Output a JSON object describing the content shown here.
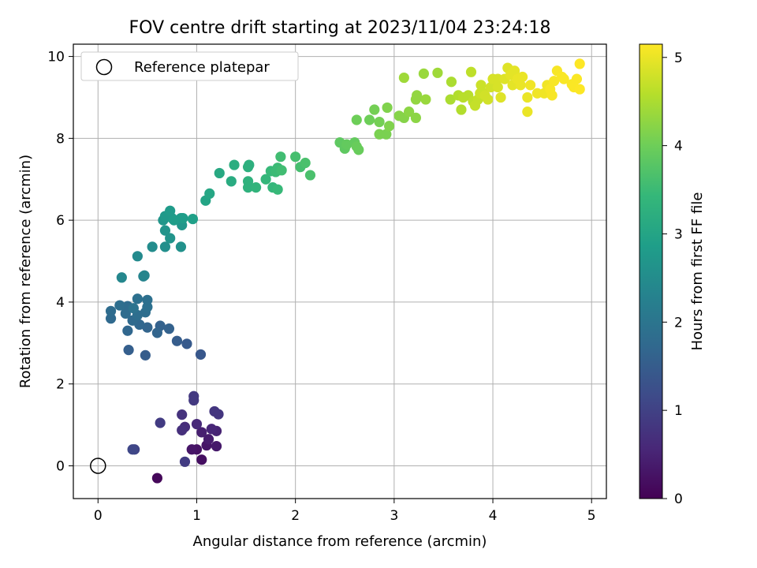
{
  "chart_data": {
    "type": "scatter",
    "title": "FOV centre drift starting at 2023/11/04 23:24:18",
    "xlabel": "Angular distance from reference (arcmin)",
    "ylabel": "Rotation from reference (arcmin)",
    "xlim": [
      -0.25,
      5.15
    ],
    "ylim": [
      -0.8,
      10.3
    ],
    "xticks": [
      0,
      1,
      2,
      3,
      4,
      5
    ],
    "yticks": [
      0,
      2,
      4,
      6,
      8,
      10
    ],
    "grid": true,
    "legend": {
      "placement": "top-left",
      "entries": [
        "Reference platepar"
      ]
    },
    "reference_point": {
      "x": 0,
      "y": 0
    },
    "colorbar": {
      "label": "Hours from first FF file",
      "range": [
        0,
        5.15
      ],
      "ticks": [
        0,
        1,
        2,
        3,
        4,
        5
      ],
      "colormap": "viridis"
    },
    "colormap_stops": [
      "#440154",
      "#482878",
      "#3e4a89",
      "#31688e",
      "#26828e",
      "#1f9e89",
      "#35b779",
      "#6ece58",
      "#b5de2b",
      "#fde725"
    ],
    "points": [
      [
        0.6,
        -0.3,
        0.1
      ],
      [
        1.05,
        0.15,
        0.2
      ],
      [
        1.0,
        0.4,
        0.25
      ],
      [
        1.1,
        0.5,
        0.3
      ],
      [
        0.95,
        0.4,
        0.3
      ],
      [
        1.2,
        0.48,
        0.35
      ],
      [
        1.12,
        0.65,
        0.4
      ],
      [
        1.05,
        0.82,
        0.45
      ],
      [
        1.2,
        0.85,
        0.5
      ],
      [
        1.15,
        0.9,
        0.55
      ],
      [
        1.0,
        1.02,
        0.6
      ],
      [
        0.88,
        0.95,
        0.65
      ],
      [
        0.85,
        0.87,
        0.7
      ],
      [
        0.85,
        1.25,
        0.75
      ],
      [
        1.18,
        1.33,
        0.8
      ],
      [
        1.22,
        1.26,
        0.8
      ],
      [
        0.97,
        1.7,
        0.85
      ],
      [
        0.97,
        1.6,
        0.85
      ],
      [
        0.63,
        1.05,
        0.9
      ],
      [
        0.88,
        0.1,
        0.9
      ],
      [
        0.37,
        0.4,
        1.05
      ],
      [
        0.35,
        0.4,
        1.1
      ],
      [
        1.04,
        2.72,
        1.4
      ],
      [
        0.9,
        2.98,
        1.45
      ],
      [
        0.8,
        3.05,
        1.5
      ],
      [
        0.48,
        2.7,
        1.5
      ],
      [
        0.31,
        2.83,
        1.55
      ],
      [
        0.72,
        3.35,
        1.6
      ],
      [
        0.63,
        3.42,
        1.6
      ],
      [
        0.6,
        3.25,
        1.65
      ],
      [
        0.5,
        3.38,
        1.65
      ],
      [
        0.42,
        3.45,
        1.7
      ],
      [
        0.3,
        3.3,
        1.7
      ],
      [
        0.35,
        3.55,
        1.75
      ],
      [
        0.13,
        3.6,
        1.75
      ],
      [
        0.13,
        3.78,
        1.8
      ],
      [
        0.28,
        3.72,
        1.8
      ],
      [
        0.3,
        3.9,
        1.8
      ],
      [
        0.4,
        3.68,
        1.85
      ],
      [
        0.48,
        3.75,
        1.85
      ],
      [
        0.22,
        3.92,
        1.85
      ],
      [
        0.5,
        3.88,
        1.9
      ],
      [
        0.5,
        4.05,
        1.9
      ],
      [
        0.4,
        4.08,
        1.9
      ],
      [
        0.36,
        3.85,
        1.95
      ],
      [
        0.46,
        4.63,
        2.3
      ],
      [
        0.47,
        4.65,
        2.35
      ],
      [
        0.24,
        4.6,
        2.4
      ],
      [
        0.4,
        5.12,
        2.45
      ],
      [
        0.55,
        5.35,
        2.5
      ],
      [
        0.68,
        5.35,
        2.55
      ],
      [
        0.84,
        5.35,
        2.6
      ],
      [
        0.73,
        5.56,
        2.65
      ],
      [
        0.68,
        5.75,
        2.65
      ],
      [
        0.85,
        5.88,
        2.7
      ],
      [
        0.66,
        6.0,
        2.7
      ],
      [
        0.68,
        6.1,
        2.75
      ],
      [
        0.75,
        6.05,
        2.75
      ],
      [
        0.73,
        6.23,
        2.8
      ],
      [
        0.84,
        6.05,
        2.8
      ],
      [
        0.86,
        6.05,
        2.85
      ],
      [
        0.77,
        6.0,
        2.85
      ],
      [
        0.96,
        6.03,
        2.9
      ],
      [
        1.09,
        6.48,
        3.0
      ],
      [
        1.13,
        6.65,
        3.05
      ],
      [
        1.23,
        7.15,
        3.1
      ],
      [
        1.35,
        6.95,
        3.15
      ],
      [
        1.38,
        7.35,
        3.2
      ],
      [
        1.52,
        7.3,
        3.25
      ],
      [
        1.53,
        7.35,
        3.25
      ],
      [
        1.52,
        6.95,
        3.3
      ],
      [
        1.52,
        6.8,
        3.3
      ],
      [
        1.6,
        6.8,
        3.35
      ],
      [
        1.7,
        7.0,
        3.4
      ],
      [
        1.77,
        6.8,
        3.4
      ],
      [
        1.82,
        6.75,
        3.45
      ],
      [
        1.75,
        7.2,
        3.45
      ],
      [
        1.8,
        7.18,
        3.5
      ],
      [
        1.82,
        7.28,
        3.5
      ],
      [
        1.86,
        7.22,
        3.55
      ],
      [
        1.85,
        7.55,
        3.55
      ],
      [
        2.0,
        7.55,
        3.6
      ],
      [
        2.05,
        7.3,
        3.6
      ],
      [
        2.1,
        7.4,
        3.65
      ],
      [
        2.15,
        7.1,
        3.65
      ],
      [
        2.45,
        7.9,
        3.85
      ],
      [
        2.5,
        7.75,
        3.85
      ],
      [
        2.52,
        7.85,
        3.9
      ],
      [
        2.6,
        7.9,
        3.9
      ],
      [
        2.62,
        7.8,
        3.95
      ],
      [
        2.64,
        7.72,
        3.95
      ],
      [
        2.62,
        8.45,
        4.0
      ],
      [
        2.75,
        8.45,
        4.0
      ],
      [
        2.8,
        8.7,
        4.05
      ],
      [
        2.85,
        8.4,
        4.05
      ],
      [
        2.85,
        8.1,
        4.1
      ],
      [
        2.92,
        8.1,
        4.1
      ],
      [
        2.95,
        8.3,
        4.15
      ],
      [
        2.93,
        8.75,
        4.15
      ],
      [
        3.05,
        8.55,
        4.2
      ],
      [
        3.1,
        8.5,
        4.2
      ],
      [
        3.15,
        8.65,
        4.25
      ],
      [
        3.22,
        8.5,
        4.25
      ],
      [
        3.22,
        8.95,
        4.3
      ],
      [
        3.23,
        9.05,
        4.3
      ],
      [
        3.32,
        8.95,
        4.35
      ],
      [
        3.3,
        9.58,
        4.35
      ],
      [
        3.1,
        9.48,
        4.4
      ],
      [
        3.44,
        9.6,
        4.4
      ],
      [
        3.58,
        9.38,
        4.5
      ],
      [
        3.57,
        8.95,
        4.5
      ],
      [
        3.65,
        9.05,
        4.55
      ],
      [
        3.68,
        8.7,
        4.55
      ],
      [
        3.7,
        9.0,
        4.6
      ],
      [
        3.75,
        9.05,
        4.6
      ],
      [
        3.78,
        9.62,
        4.65
      ],
      [
        3.8,
        8.9,
        4.65
      ],
      [
        3.82,
        8.8,
        4.7
      ],
      [
        3.85,
        8.95,
        4.7
      ],
      [
        3.87,
        9.1,
        4.75
      ],
      [
        3.88,
        9.3,
        4.75
      ],
      [
        3.9,
        9.12,
        4.75
      ],
      [
        3.92,
        9.05,
        4.8
      ],
      [
        3.95,
        8.95,
        4.8
      ],
      [
        3.98,
        9.25,
        4.8
      ],
      [
        4.0,
        9.45,
        4.85
      ],
      [
        4.05,
        9.45,
        4.85
      ],
      [
        4.05,
        9.25,
        4.85
      ],
      [
        4.08,
        9.0,
        4.9
      ],
      [
        4.12,
        9.45,
        4.9
      ],
      [
        4.15,
        9.72,
        4.9
      ],
      [
        4.18,
        9.55,
        4.95
      ],
      [
        4.2,
        9.3,
        4.95
      ],
      [
        4.22,
        9.65,
        4.95
      ],
      [
        4.25,
        9.45,
        5.0
      ],
      [
        4.28,
        9.3,
        5.0
      ],
      [
        4.3,
        9.5,
        5.0
      ],
      [
        4.35,
        9.0,
        5.0
      ],
      [
        4.35,
        8.65,
        5.0
      ],
      [
        4.38,
        9.3,
        5.05
      ],
      [
        4.45,
        9.1,
        5.05
      ],
      [
        4.52,
        9.1,
        5.05
      ],
      [
        4.55,
        9.3,
        5.05
      ],
      [
        4.58,
        9.2,
        5.1
      ],
      [
        4.6,
        9.05,
        5.1
      ],
      [
        4.62,
        9.4,
        5.1
      ],
      [
        4.65,
        9.65,
        5.1
      ],
      [
        4.7,
        9.5,
        5.12
      ],
      [
        4.72,
        9.45,
        5.12
      ],
      [
        4.8,
        9.32,
        5.12
      ],
      [
        4.82,
        9.25,
        5.13
      ],
      [
        4.85,
        9.45,
        5.13
      ],
      [
        4.88,
        9.2,
        5.14
      ],
      [
        4.88,
        9.82,
        5.15
      ]
    ]
  }
}
